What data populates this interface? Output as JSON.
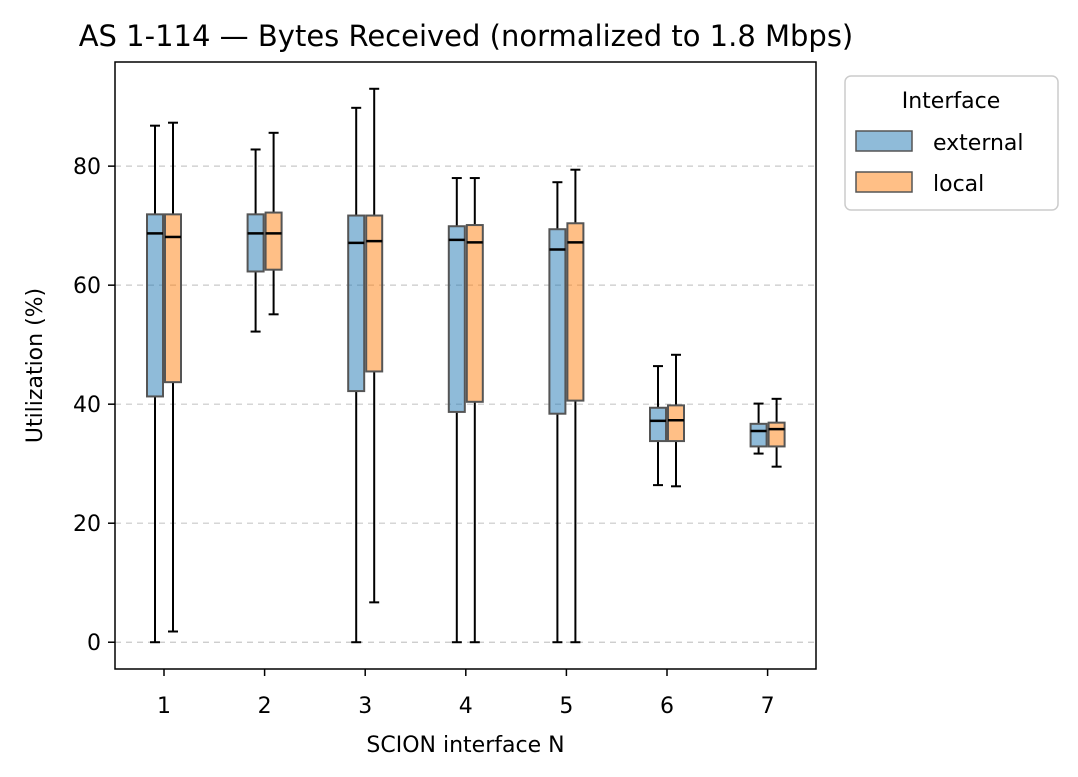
{
  "chart_data": {
    "type": "box",
    "title": "AS 1-114 — Bytes Received (normalized to 1.8 Mbps)",
    "xlabel": "SCION interface N",
    "ylabel": "Utilization (%)",
    "categories": [
      "1",
      "2",
      "3",
      "4",
      "5",
      "6",
      "7"
    ],
    "ylim": [
      -4.5,
      97.5
    ],
    "yticks": [
      0,
      20,
      40,
      60,
      80
    ],
    "grid": "y-dashed",
    "legend": {
      "title": "Interface",
      "placement": "outside-top-right"
    },
    "series": [
      {
        "name": "external",
        "color": "#1f77b4",
        "boxes": [
          {
            "whisker_low": 0.0,
            "q1": 41.3,
            "median": 68.7,
            "q3": 71.9,
            "whisker_high": 86.8
          },
          {
            "whisker_low": 52.2,
            "q1": 62.3,
            "median": 68.7,
            "q3": 71.9,
            "whisker_high": 82.8
          },
          {
            "whisker_low": 0.0,
            "q1": 42.2,
            "median": 67.1,
            "q3": 71.7,
            "whisker_high": 89.8
          },
          {
            "whisker_low": 0.0,
            "q1": 38.7,
            "median": 67.6,
            "q3": 69.9,
            "whisker_high": 78.0
          },
          {
            "whisker_low": 0.0,
            "q1": 38.4,
            "median": 66.0,
            "q3": 69.4,
            "whisker_high": 77.3
          },
          {
            "whisker_low": 26.4,
            "q1": 33.8,
            "median": 37.2,
            "q3": 39.4,
            "whisker_high": 46.4
          },
          {
            "whisker_low": 31.7,
            "q1": 32.9,
            "median": 35.5,
            "q3": 36.7,
            "whisker_high": 40.1
          }
        ]
      },
      {
        "name": "local",
        "color": "#ff7f0e",
        "boxes": [
          {
            "whisker_low": 1.8,
            "q1": 43.7,
            "median": 68.1,
            "q3": 71.9,
            "whisker_high": 87.3
          },
          {
            "whisker_low": 55.1,
            "q1": 62.6,
            "median": 68.7,
            "q3": 72.2,
            "whisker_high": 85.6
          },
          {
            "whisker_low": 6.7,
            "q1": 45.5,
            "median": 67.4,
            "q3": 71.7,
            "whisker_high": 93.0
          },
          {
            "whisker_low": 0.0,
            "q1": 40.4,
            "median": 67.2,
            "q3": 70.1,
            "whisker_high": 78.0
          },
          {
            "whisker_low": 0.0,
            "q1": 40.6,
            "median": 67.2,
            "q3": 70.4,
            "whisker_high": 79.4
          },
          {
            "whisker_low": 26.2,
            "q1": 33.8,
            "median": 37.3,
            "q3": 39.8,
            "whisker_high": 48.3
          },
          {
            "whisker_low": 29.5,
            "q1": 32.9,
            "median": 35.8,
            "q3": 36.9,
            "whisker_high": 40.9
          }
        ]
      }
    ]
  }
}
